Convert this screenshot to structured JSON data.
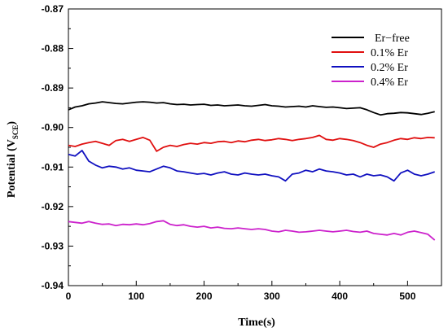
{
  "chart_data": {
    "type": "line",
    "title": "",
    "xlabel": "Time(s)",
    "ylabel_main": "Potential (V",
    "ylabel_sub": "SCE",
    "ylabel_close": ")",
    "xlim": [
      0,
      550
    ],
    "ylim": [
      -0.94,
      -0.87
    ],
    "xticks": [
      0,
      100,
      200,
      300,
      400,
      500
    ],
    "yticks": [
      -0.94,
      -0.93,
      -0.92,
      -0.91,
      -0.9,
      -0.89,
      -0.88,
      -0.87
    ],
    "ytick_labels": [
      "-0.94",
      "-0.93",
      "-0.92",
      "-0.91",
      "-0.90",
      "-0.89",
      "-0.88",
      "-0.87"
    ],
    "grid": false,
    "legend_position": "top-right",
    "x": [
      0,
      10,
      20,
      30,
      40,
      50,
      60,
      70,
      80,
      90,
      100,
      110,
      120,
      130,
      140,
      150,
      160,
      170,
      180,
      190,
      200,
      210,
      220,
      230,
      240,
      250,
      260,
      270,
      280,
      290,
      300,
      310,
      320,
      330,
      340,
      350,
      360,
      370,
      380,
      390,
      400,
      410,
      420,
      430,
      440,
      450,
      460,
      470,
      480,
      490,
      500,
      510,
      520,
      530,
      540
    ],
    "series": [
      {
        "name": "Er−free",
        "color": "#000000",
        "values": [
          -0.8955,
          -0.8948,
          -0.8945,
          -0.894,
          -0.8938,
          -0.8935,
          -0.8937,
          -0.8939,
          -0.894,
          -0.8938,
          -0.8936,
          -0.8935,
          -0.8936,
          -0.8938,
          -0.8937,
          -0.894,
          -0.8942,
          -0.8941,
          -0.8943,
          -0.8942,
          -0.8941,
          -0.8944,
          -0.8943,
          -0.8945,
          -0.8944,
          -0.8943,
          -0.8945,
          -0.8946,
          -0.8944,
          -0.8942,
          -0.8945,
          -0.8946,
          -0.8948,
          -0.8947,
          -0.8946,
          -0.8948,
          -0.8945,
          -0.8947,
          -0.8949,
          -0.8948,
          -0.895,
          -0.8952,
          -0.8951,
          -0.895,
          -0.8955,
          -0.8962,
          -0.8968,
          -0.8965,
          -0.8964,
          -0.8962,
          -0.8963,
          -0.8965,
          -0.8967,
          -0.8964,
          -0.896
        ]
      },
      {
        "name": "0.1% Er",
        "color": "#e01010",
        "values": [
          -0.9045,
          -0.9048,
          -0.9042,
          -0.9038,
          -0.9035,
          -0.904,
          -0.9045,
          -0.9033,
          -0.903,
          -0.9035,
          -0.903,
          -0.9025,
          -0.9032,
          -0.906,
          -0.905,
          -0.9045,
          -0.9048,
          -0.9043,
          -0.904,
          -0.9042,
          -0.9038,
          -0.904,
          -0.9036,
          -0.9035,
          -0.9038,
          -0.9034,
          -0.9036,
          -0.9032,
          -0.903,
          -0.9033,
          -0.9031,
          -0.9028,
          -0.903,
          -0.9033,
          -0.903,
          -0.9028,
          -0.9025,
          -0.902,
          -0.903,
          -0.9032,
          -0.9028,
          -0.903,
          -0.9033,
          -0.9038,
          -0.9045,
          -0.905,
          -0.9042,
          -0.9038,
          -0.9032,
          -0.9028,
          -0.903,
          -0.9026,
          -0.9028,
          -0.9025,
          -0.9026
        ]
      },
      {
        "name": "0.2% Er",
        "color": "#1010c0",
        "values": [
          -0.9068,
          -0.9072,
          -0.9058,
          -0.9085,
          -0.9095,
          -0.9102,
          -0.9098,
          -0.91,
          -0.9105,
          -0.9102,
          -0.9108,
          -0.911,
          -0.9112,
          -0.9105,
          -0.9098,
          -0.9102,
          -0.911,
          -0.9112,
          -0.9115,
          -0.9118,
          -0.9116,
          -0.912,
          -0.9115,
          -0.9112,
          -0.9118,
          -0.912,
          -0.9115,
          -0.9118,
          -0.912,
          -0.9118,
          -0.9122,
          -0.9125,
          -0.9135,
          -0.9118,
          -0.9115,
          -0.9108,
          -0.9112,
          -0.9105,
          -0.911,
          -0.9112,
          -0.9115,
          -0.912,
          -0.9118,
          -0.9125,
          -0.9118,
          -0.9122,
          -0.912,
          -0.9125,
          -0.9135,
          -0.9115,
          -0.9108,
          -0.9118,
          -0.9122,
          -0.9118,
          -0.9112
        ]
      },
      {
        "name": "0.4% Er",
        "color": "#cc22cc",
        "values": [
          -0.9238,
          -0.924,
          -0.9242,
          -0.9238,
          -0.9242,
          -0.9245,
          -0.9244,
          -0.9248,
          -0.9245,
          -0.9246,
          -0.9244,
          -0.9246,
          -0.9243,
          -0.9238,
          -0.9236,
          -0.9245,
          -0.9248,
          -0.9246,
          -0.925,
          -0.9252,
          -0.925,
          -0.9254,
          -0.9252,
          -0.9255,
          -0.9256,
          -0.9254,
          -0.9256,
          -0.9258,
          -0.9256,
          -0.9258,
          -0.9262,
          -0.9264,
          -0.926,
          -0.9262,
          -0.9265,
          -0.9264,
          -0.9262,
          -0.926,
          -0.9262,
          -0.9264,
          -0.9262,
          -0.926,
          -0.9263,
          -0.9265,
          -0.9262,
          -0.9268,
          -0.927,
          -0.9272,
          -0.9268,
          -0.9272,
          -0.9265,
          -0.9262,
          -0.9266,
          -0.927,
          -0.9285
        ]
      }
    ]
  }
}
